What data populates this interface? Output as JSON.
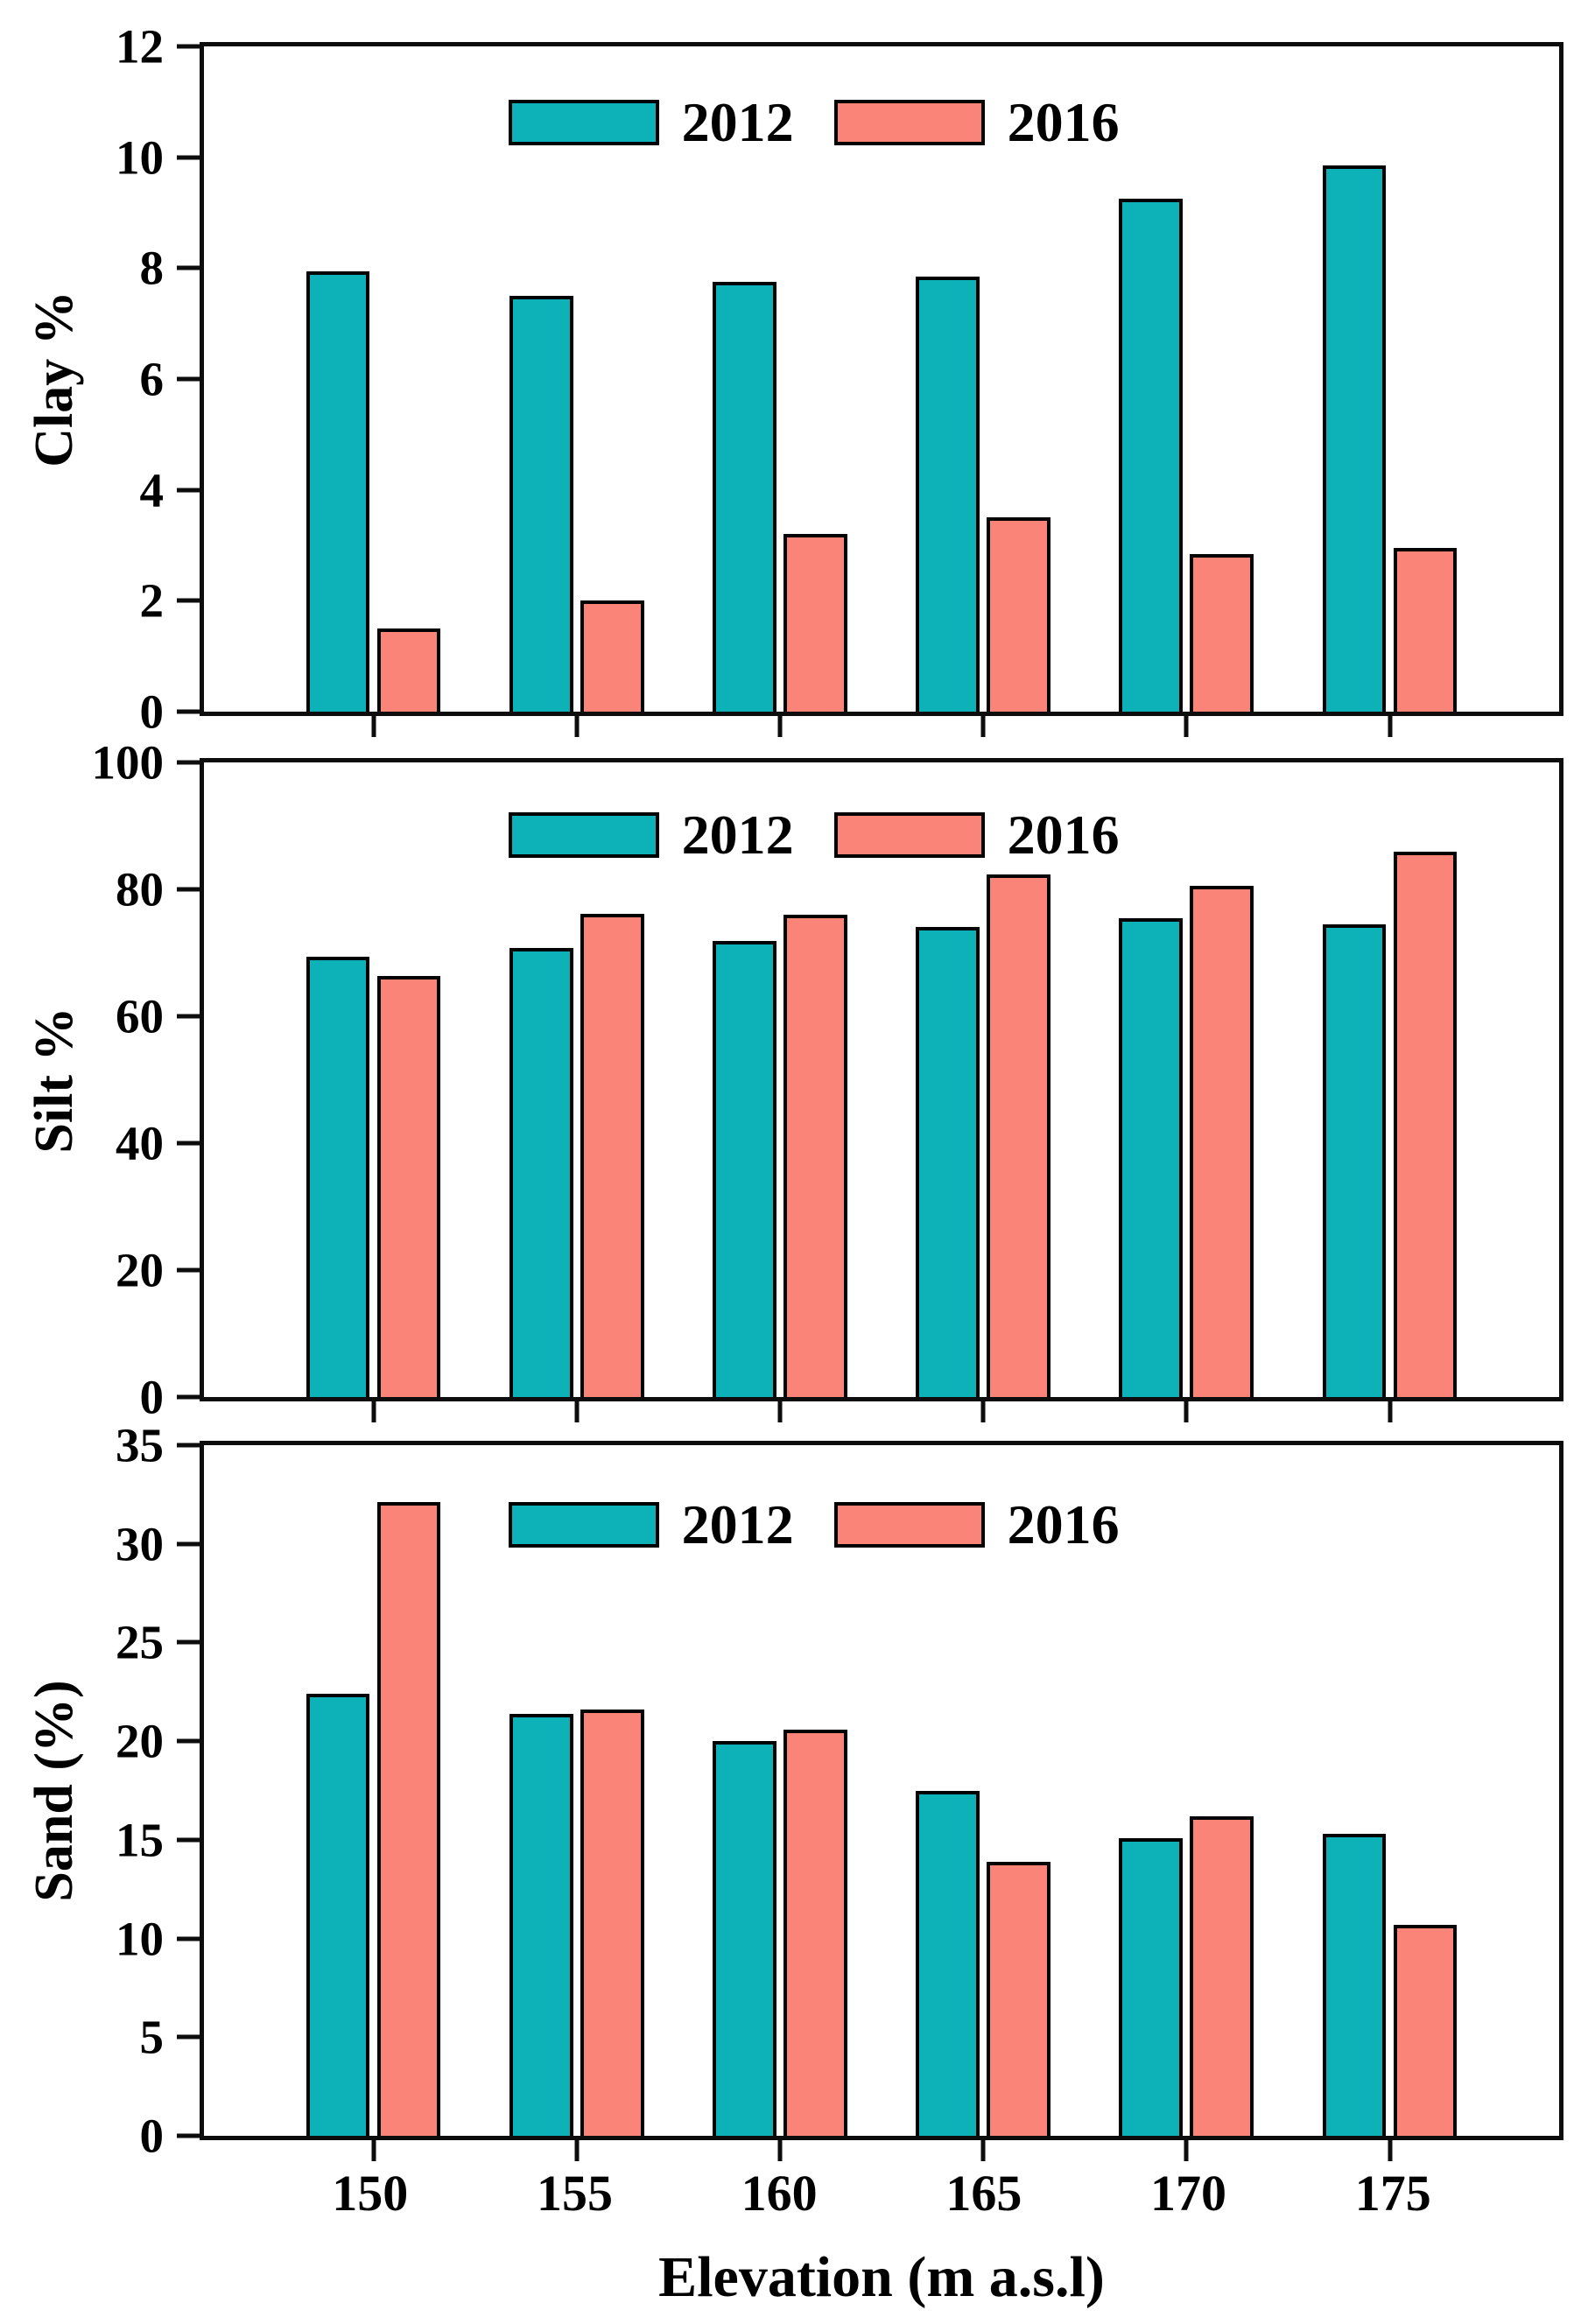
{
  "figure": {
    "legend": {
      "series1": "2012",
      "series2": "2016"
    },
    "colors": {
      "series1": "#0cb2b8",
      "series2": "#fa8478",
      "outline": "#000000",
      "frame": "#0d0d0d"
    },
    "x_axis": {
      "label": "Elevation (m a.s.l)",
      "categories": [
        "150",
        "155",
        "160",
        "165",
        "170",
        "175"
      ]
    }
  },
  "chart_data": [
    {
      "type": "bar",
      "title": "",
      "ylabel": "Clay %",
      "xlabel": "",
      "categories": [
        150,
        155,
        160,
        165,
        170,
        175
      ],
      "series": [
        {
          "name": "2012",
          "values": [
            7.95,
            7.5,
            7.75,
            7.85,
            9.25,
            9.85
          ]
        },
        {
          "name": "2016",
          "values": [
            1.5,
            2.0,
            3.2,
            3.5,
            2.85,
            2.95
          ]
        }
      ],
      "ylim": [
        0,
        12
      ],
      "ytick_step": 2,
      "grid": false,
      "legend_position": "top-center"
    },
    {
      "type": "bar",
      "title": "",
      "ylabel": "Silt %",
      "xlabel": "",
      "categories": [
        150,
        155,
        160,
        165,
        170,
        175
      ],
      "series": [
        {
          "name": "2012",
          "values": [
            69.4,
            70.7,
            71.9,
            74.1,
            75.4,
            74.5
          ]
        },
        {
          "name": "2016",
          "values": [
            66.4,
            76.2,
            76.0,
            82.3,
            80.6,
            86.0
          ]
        }
      ],
      "ylim": [
        0,
        100
      ],
      "ytick_step": 20,
      "grid": false,
      "legend_position": "top-center"
    },
    {
      "type": "bar",
      "title": "",
      "ylabel": "Sand (%)",
      "xlabel": "Elevation (m a.s.l)",
      "categories": [
        150,
        155,
        160,
        165,
        170,
        175
      ],
      "series": [
        {
          "name": "2012",
          "values": [
            22.4,
            21.4,
            20.0,
            17.5,
            15.1,
            15.3
          ]
        },
        {
          "name": "2016",
          "values": [
            32.1,
            21.6,
            20.6,
            13.9,
            16.2,
            10.7
          ]
        }
      ],
      "ylim": [
        0,
        35
      ],
      "ytick_step": 5,
      "grid": false,
      "legend_position": "top-center"
    }
  ]
}
